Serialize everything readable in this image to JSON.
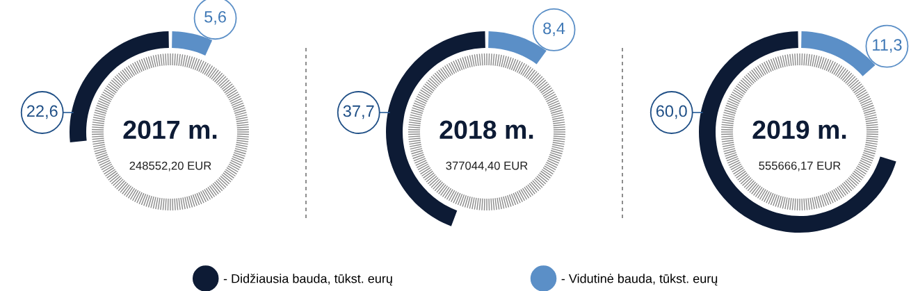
{
  "chart_data": {
    "type": "other",
    "categories": [
      "2017 m.",
      "2018 m.",
      "2019 m."
    ],
    "series": [
      {
        "name": "- Didžiausia bauda, tūkst. eurų",
        "color": "#0d1b35",
        "values": [
          22.6,
          37.7,
          60.0
        ],
        "value_labels": [
          "22,6",
          "37,7",
          "60,0"
        ]
      },
      {
        "name": "- Vidutinė bauda, tūkst. eurų",
        "color": "#5b8fc7",
        "values": [
          5.6,
          8.4,
          11.3
        ],
        "value_labels": [
          "5,6",
          "8,4",
          "11,3"
        ]
      }
    ],
    "annotations": [
      {
        "text": "248552,20 EUR",
        "x": "2017 m."
      },
      {
        "text": "377044,40 EUR",
        "x": "2018 m."
      },
      {
        "text": "555666,17 EUR",
        "x": "2019 m."
      }
    ],
    "legend": "bottom"
  }
}
